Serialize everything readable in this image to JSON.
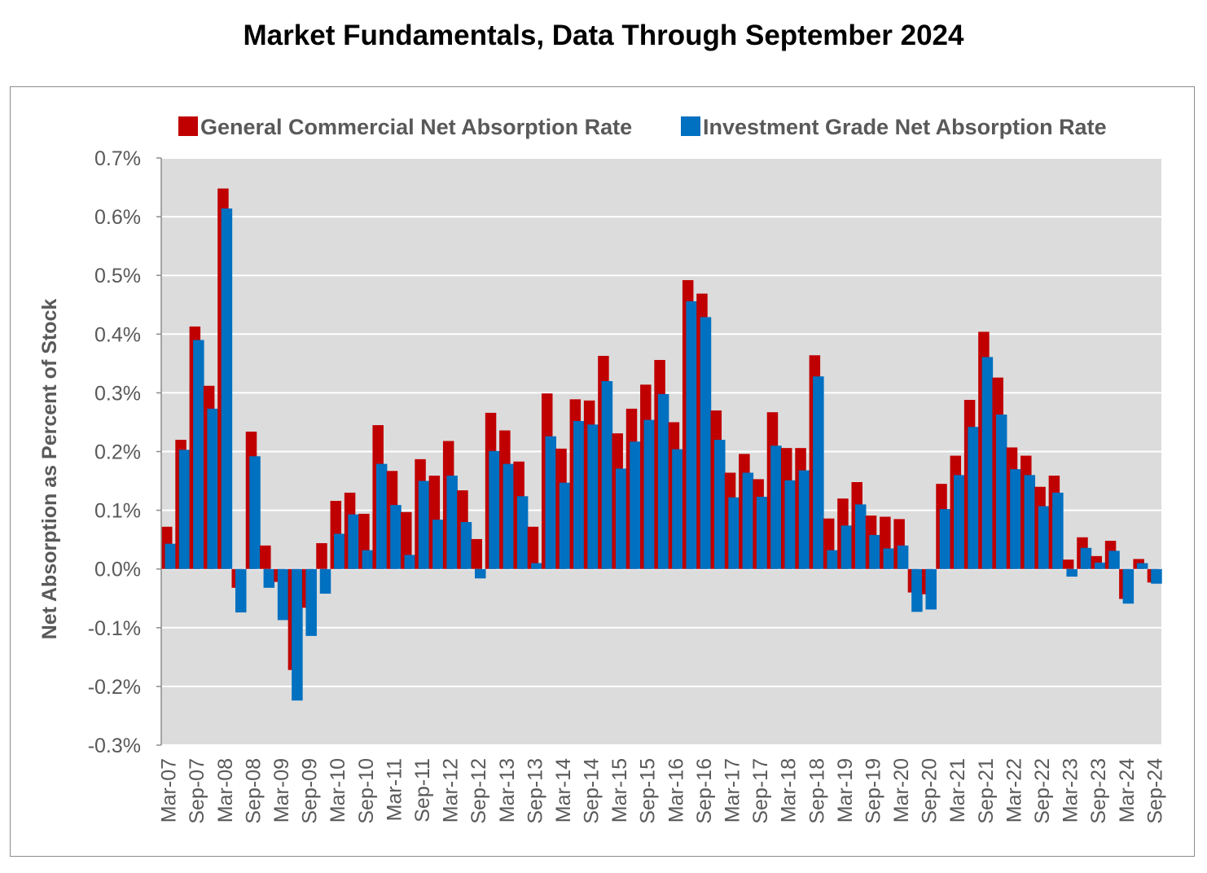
{
  "title": "Market Fundamentals, Data Through September 2024",
  "colors": {
    "general": "#C00000",
    "investment": "#0070C0",
    "plot_bg": "#DCDCDC",
    "grid": "#FFFFFF",
    "text": "#595959"
  },
  "chart_data": {
    "type": "bar",
    "title": "Market Fundamentals, Data Through September 2024",
    "xlabel": "",
    "ylabel": "Net Absorption as Percent of Stock",
    "ylim": [
      -0.3,
      0.7
    ],
    "yticks": [
      0.7,
      0.6,
      0.5,
      0.4,
      0.3,
      0.2,
      0.1,
      0.0,
      -0.1,
      -0.2,
      -0.3
    ],
    "ytick_labels": [
      "0.7%",
      "0.6%",
      "0.5%",
      "0.4%",
      "0.3%",
      "0.2%",
      "0.1%",
      "0.0%",
      "-0.1%",
      "-0.2%",
      "-0.3%"
    ],
    "grid": true,
    "legend_position": "top",
    "categories": [
      "Mar-07",
      "Jun-07",
      "Sep-07",
      "Dec-07",
      "Mar-08",
      "Jun-08",
      "Sep-08",
      "Dec-08",
      "Mar-09",
      "Jun-09",
      "Sep-09",
      "Dec-09",
      "Mar-10",
      "Jun-10",
      "Sep-10",
      "Dec-10",
      "Mar-11",
      "Jun-11",
      "Sep-11",
      "Dec-11",
      "Mar-12",
      "Jun-12",
      "Sep-12",
      "Dec-12",
      "Mar-13",
      "Jun-13",
      "Sep-13",
      "Dec-13",
      "Mar-14",
      "Jun-14",
      "Sep-14",
      "Dec-14",
      "Mar-15",
      "Jun-15",
      "Sep-15",
      "Dec-15",
      "Mar-16",
      "Jun-16",
      "Sep-16",
      "Dec-16",
      "Mar-17",
      "Jun-17",
      "Sep-17",
      "Dec-17",
      "Mar-18",
      "Jun-18",
      "Sep-18",
      "Dec-18",
      "Mar-19",
      "Jun-19",
      "Sep-19",
      "Dec-19",
      "Mar-20",
      "Jun-20",
      "Sep-20",
      "Dec-20",
      "Mar-21",
      "Jun-21",
      "Sep-21",
      "Dec-21",
      "Mar-22",
      "Jun-22",
      "Sep-22",
      "Dec-22",
      "Mar-23",
      "Jun-23",
      "Sep-23",
      "Dec-23",
      "Mar-24",
      "Jun-24",
      "Sep-24"
    ],
    "x_tick_labels": [
      "Mar-07",
      "Sep-07",
      "Mar-08",
      "Sep-08",
      "Mar-09",
      "Sep-09",
      "Mar-10",
      "Sep-10",
      "Mar-11",
      "Sep-11",
      "Mar-12",
      "Sep-12",
      "Mar-13",
      "Sep-13",
      "Mar-14",
      "Sep-14",
      "Mar-15",
      "Sep-15",
      "Mar-16",
      "Sep-16",
      "Mar-17",
      "Sep-17",
      "Mar-18",
      "Sep-18",
      "Mar-19",
      "Sep-19",
      "Mar-20",
      "Sep-20",
      "Mar-21",
      "Sep-21",
      "Mar-22",
      "Sep-22",
      "Mar-23",
      "Sep-23",
      "Mar-24",
      "Sep-24"
    ],
    "series": [
      {
        "name": "General Commercial Net Absorption Rate",
        "color": "#C00000",
        "values": [
          0.072,
          0.22,
          0.413,
          0.312,
          0.648,
          -0.032,
          0.234,
          0.04,
          -0.022,
          -0.172,
          -0.066,
          0.044,
          0.116,
          0.13,
          0.094,
          0.245,
          0.167,
          0.097,
          0.187,
          0.159,
          0.218,
          0.134,
          0.051,
          0.266,
          0.236,
          0.183,
          0.072,
          0.299,
          0.205,
          0.289,
          0.287,
          0.363,
          0.231,
          0.273,
          0.314,
          0.356,
          0.25,
          0.492,
          0.469,
          0.27,
          0.164,
          0.196,
          0.153,
          0.267,
          0.206,
          0.206,
          0.364,
          0.086,
          0.12,
          0.148,
          0.091,
          0.089,
          0.085,
          -0.04,
          -0.043,
          0.145,
          0.193,
          0.288,
          0.404,
          0.326,
          0.207,
          0.193,
          0.14,
          0.159,
          0.016,
          0.054,
          0.022,
          0.048,
          -0.051,
          0.017,
          -0.023
        ]
      },
      {
        "name": "Investment Grade Net Absorption Rate",
        "color": "#0070C0",
        "values": [
          0.043,
          0.203,
          0.39,
          0.273,
          0.614,
          -0.074,
          0.192,
          -0.032,
          -0.087,
          -0.224,
          -0.114,
          -0.042,
          0.06,
          0.093,
          0.032,
          0.179,
          0.109,
          0.024,
          0.15,
          0.084,
          0.159,
          0.08,
          -0.016,
          0.201,
          0.179,
          0.124,
          0.01,
          0.226,
          0.147,
          0.252,
          0.246,
          0.32,
          0.171,
          0.217,
          0.254,
          0.298,
          0.204,
          0.456,
          0.429,
          0.22,
          0.122,
          0.164,
          0.123,
          0.21,
          0.151,
          0.168,
          0.328,
          0.032,
          0.074,
          0.11,
          0.058,
          0.035,
          0.04,
          -0.073,
          -0.069,
          0.102,
          0.16,
          0.242,
          0.361,
          0.263,
          0.17,
          0.16,
          0.107,
          0.13,
          -0.013,
          0.036,
          0.011,
          0.031,
          -0.059,
          0.01,
          -0.025
        ]
      }
    ]
  }
}
